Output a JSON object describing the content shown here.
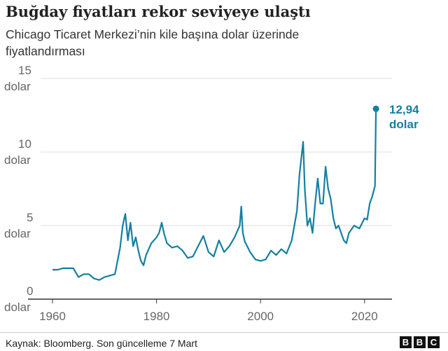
{
  "chart_data": {
    "type": "line",
    "title": "Buğday fiyatları rekor seviyeye ulaştı",
    "subtitle": "Chicago Ticaret Merkezi’nin kile başına dolar üzerinde fiyatlandırması",
    "xlabel": "",
    "ylabel": "dolar",
    "xlim": [
      1960,
      2025
    ],
    "ylim": [
      0,
      15
    ],
    "x_ticks": [
      "1960",
      "1980",
      "2000",
      "2020"
    ],
    "y_ticks": [
      {
        "v": 0,
        "l1": "0",
        "l2": "dolar"
      },
      {
        "v": 5,
        "l1": "5",
        "l2": "dolar"
      },
      {
        "v": 10,
        "l1": "10",
        "l2": "dolar"
      },
      {
        "v": 15,
        "l1": "15",
        "l2": "dolar"
      }
    ],
    "color": "#1380A1",
    "x": [
      1960,
      1961,
      1962,
      1963,
      1964,
      1965,
      1966,
      1967,
      1968,
      1969,
      1970,
      1971,
      1972,
      1973,
      1973.5,
      1974,
      1974.5,
      1975,
      1975.5,
      1976,
      1976.5,
      1977,
      1977.5,
      1978,
      1979,
      1980,
      1980.5,
      1981,
      1981.5,
      1982,
      1983,
      1984,
      1985,
      1986,
      1987,
      1988,
      1989,
      1990,
      1991,
      1992,
      1993,
      1994,
      1995,
      1996,
      1996.3,
      1996.6,
      1997,
      1998,
      1999,
      2000,
      2001,
      2002,
      2003,
      2004,
      2005,
      2006,
      2007,
      2007.5,
      2008.2,
      2008.5,
      2009,
      2009.5,
      2010,
      2010.5,
      2011,
      2011.5,
      2012,
      2012.5,
      2013,
      2013.5,
      2014,
      2014.5,
      2015,
      2016,
      2016.5,
      2017,
      2018,
      2019,
      2020,
      2020.5,
      2021,
      2021.5,
      2022,
      2022.2
    ],
    "values": [
      2.0,
      2.0,
      2.1,
      2.1,
      2.1,
      1.5,
      1.7,
      1.7,
      1.4,
      1.3,
      1.5,
      1.6,
      1.7,
      3.5,
      5.0,
      5.8,
      4.0,
      5.2,
      3.6,
      4.2,
      3.3,
      2.6,
      2.3,
      3.0,
      3.8,
      4.2,
      4.5,
      5.2,
      4.4,
      3.8,
      3.5,
      3.6,
      3.3,
      2.8,
      2.9,
      3.6,
      4.3,
      3.2,
      2.9,
      4.0,
      3.2,
      3.6,
      4.2,
      5.0,
      6.3,
      4.5,
      3.9,
      3.2,
      2.7,
      2.6,
      2.7,
      3.3,
      3.0,
      3.4,
      3.1,
      4.0,
      6.0,
      8.5,
      10.7,
      7.5,
      5.0,
      5.5,
      4.5,
      6.5,
      8.2,
      6.5,
      6.5,
      9.0,
      7.5,
      6.8,
      5.5,
      4.8,
      5.0,
      4.0,
      3.8,
      4.5,
      5.0,
      4.8,
      5.5,
      5.4,
      6.5,
      7.0,
      7.7,
      12.94
    ],
    "annotation": {
      "value": "12,94",
      "unit": "dolar"
    }
  },
  "source": "Kaynak: Bloomberg. Son güncelleme 7 Mart",
  "logo": [
    "B",
    "B",
    "C"
  ]
}
